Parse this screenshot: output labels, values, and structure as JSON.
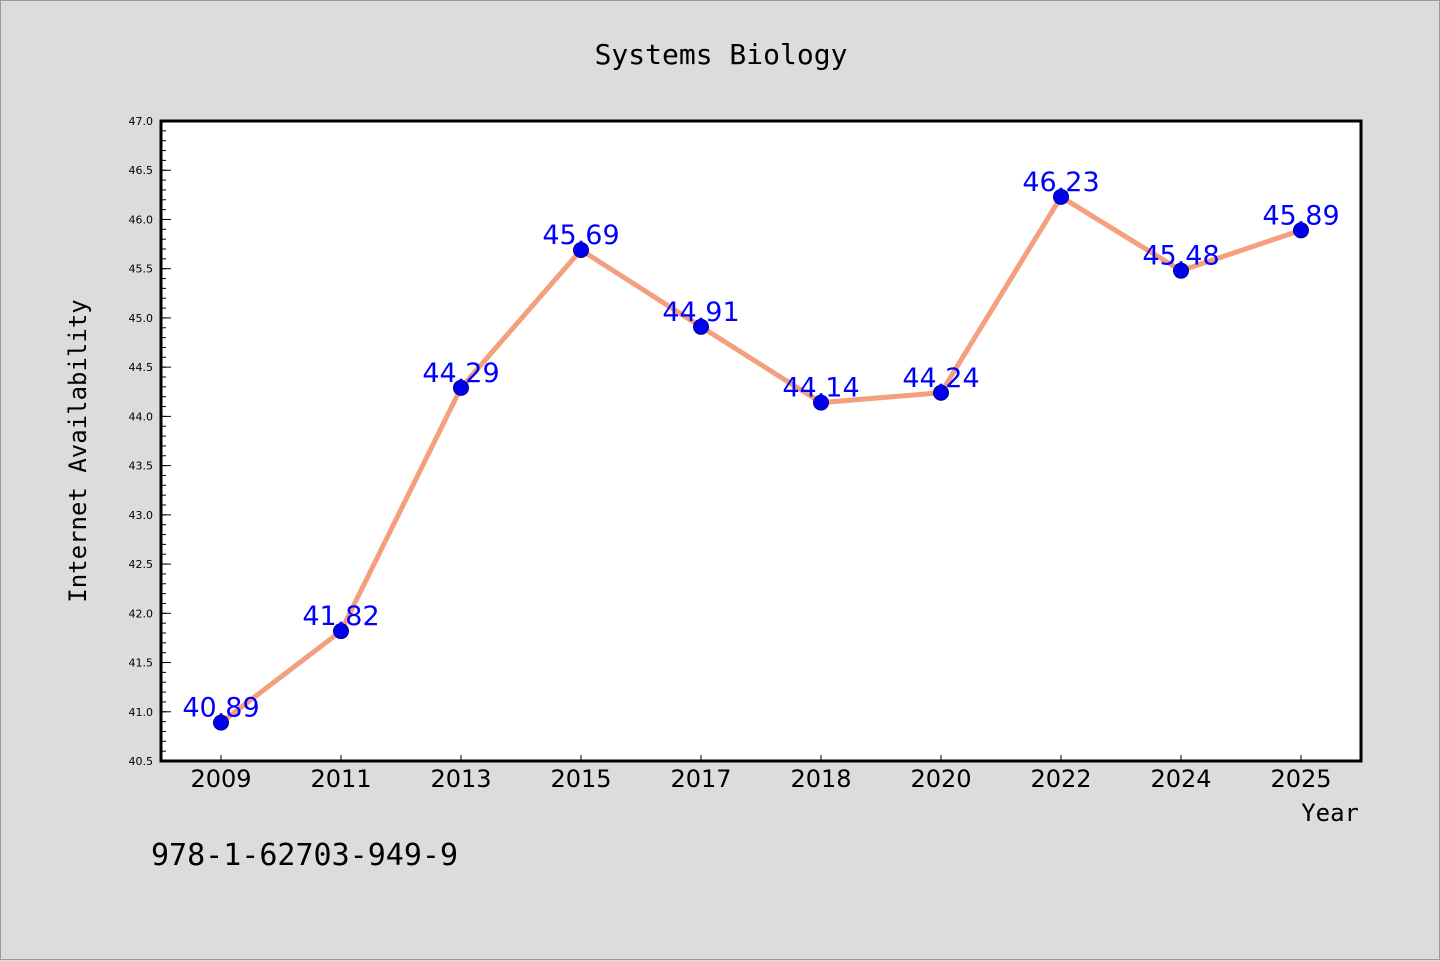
{
  "chart_data": {
    "type": "line",
    "title": "Systems Biology",
    "xlabel": "Year",
    "ylabel": "Internet Availability",
    "categories": [
      "2009",
      "2011",
      "2013",
      "2015",
      "2017",
      "2018",
      "2020",
      "2022",
      "2024",
      "2025"
    ],
    "series": [
      {
        "values": [
          40.89,
          41.82,
          44.29,
          45.69,
          44.91,
          44.14,
          44.24,
          46.23,
          45.48,
          45.89
        ]
      }
    ],
    "data_labels": [
      "40.89",
      "41.82",
      "44.29",
      "45.69",
      "44.91",
      "44.14",
      "44.24",
      "46.23",
      "45.48",
      "45.89"
    ],
    "ylim": [
      40.5,
      47.0
    ],
    "yticks": [
      "40.5",
      "41.0",
      "41.5",
      "42.0",
      "42.5",
      "43.0",
      "43.5",
      "44.0",
      "44.5",
      "45.0",
      "45.5",
      "46.0",
      "46.5",
      "47.0"
    ],
    "grid": false,
    "legend": "none",
    "line_color": "#f4a07e",
    "marker_color": "#0000ee",
    "label_color": "#0000ff",
    "background": "#dcdcdc",
    "plot_background": "#ffffff"
  },
  "footer": {
    "isbn": "978-1-62703-949-9"
  }
}
